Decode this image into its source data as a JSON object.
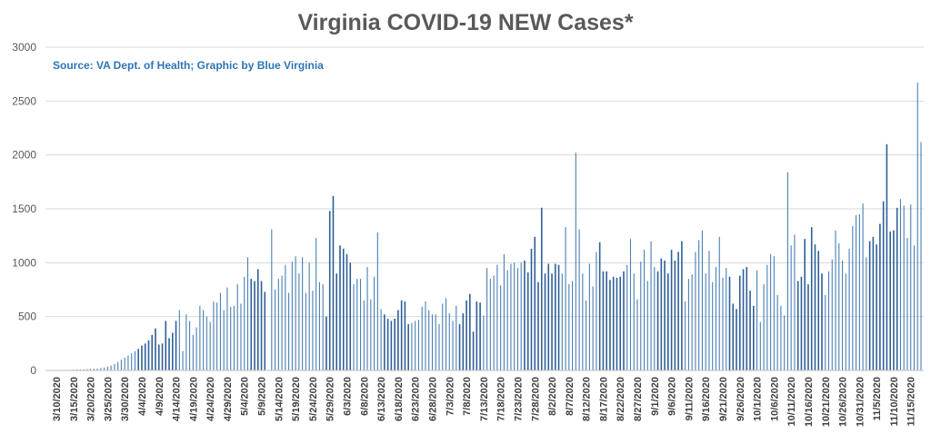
{
  "chart_data": {
    "type": "bar",
    "title": "Virginia COVID-19 NEW Cases*",
    "subtitle": "Source: VA Dept. of Health; Graphic by Blue Virginia",
    "xlabel": "",
    "ylabel": "",
    "ylim": [
      0,
      3000
    ],
    "yticks": [
      0,
      500,
      1000,
      1500,
      2000,
      2500,
      3000
    ],
    "grid": true,
    "legend": "none",
    "colors": {
      "bar": "#4a7fb5",
      "bar_dark": "#2f5f97",
      "title": "#595959",
      "subtitle": "#2e75b6",
      "grid": "#d9d9d9"
    },
    "first_date": "3/10/2020",
    "tick_labels": [
      "3/10/2020",
      "3/15/2020",
      "3/20/2020",
      "3/25/2020",
      "3/30/2020",
      "4/4/2020",
      "4/9/2020",
      "4/14/2020",
      "4/19/2020",
      "4/24/2020",
      "4/29/2020",
      "5/4/2020",
      "5/9/2020",
      "5/14/2020",
      "5/19/2020",
      "5/24/2020",
      "5/29/2020",
      "6/3/2020",
      "6/8/2020",
      "6/13/2020",
      "6/18/2020",
      "6/23/2020",
      "6/28/2020",
      "7/3/2020",
      "7/8/2020",
      "7/13/2020",
      "7/18/2020",
      "7/23/2020",
      "7/28/2020",
      "8/2/2020",
      "8/7/2020",
      "8/12/2020",
      "8/17/2020",
      "8/22/2020",
      "8/27/2020",
      "9/1/2020",
      "9/6/2020",
      "9/11/2020",
      "9/16/2020",
      "9/21/2020",
      "9/26/2020",
      "10/1/2020",
      "10/6/2020",
      "10/11/2020",
      "10/16/2020",
      "10/21/2020",
      "10/26/2020",
      "10/31/2020",
      "11/5/2020",
      "11/10/2020",
      "11/15/2020"
    ],
    "values": [
      2,
      3,
      4,
      5,
      6,
      7,
      8,
      9,
      10,
      12,
      14,
      16,
      18,
      22,
      28,
      35,
      45,
      60,
      80,
      100,
      120,
      140,
      160,
      180,
      200,
      230,
      250,
      280,
      330,
      390,
      240,
      250,
      460,
      300,
      350,
      460,
      560,
      180,
      520,
      460,
      330,
      400,
      600,
      560,
      500,
      450,
      640,
      630,
      720,
      560,
      770,
      590,
      600,
      800,
      620,
      870,
      1050,
      850,
      830,
      940,
      830,
      730,
      0,
      1310,
      750,
      850,
      880,
      980,
      720,
      1010,
      1060,
      900,
      1050,
      720,
      1000,
      740,
      1230,
      820,
      800,
      500,
      1480,
      1620,
      900,
      1160,
      1130,
      1080,
      1000,
      800,
      850,
      850,
      650,
      960,
      660,
      870,
      1280,
      570,
      520,
      480,
      460,
      480,
      560,
      650,
      640,
      430,
      440,
      460,
      470,
      590,
      640,
      560,
      520,
      520,
      430,
      620,
      670,
      530,
      460,
      600,
      430,
      530,
      650,
      710,
      360,
      640,
      630,
      510,
      950,
      850,
      880,
      980,
      790,
      1080,
      930,
      990,
      1000,
      950,
      1000,
      1020,
      910,
      1130,
      1240,
      820,
      1510,
      900,
      990,
      900,
      990,
      980,
      900,
      1330,
      800,
      830,
      2020,
      1310,
      900,
      650,
      990,
      780,
      1100,
      1190,
      920,
      920,
      840,
      870,
      860,
      870,
      920,
      980,
      1220,
      900,
      660,
      1010,
      1120,
      830,
      1200,
      960,
      920,
      1040,
      1020,
      900,
      1120,
      1020,
      1100,
      1200,
      640,
      850,
      890,
      1100,
      1210,
      1300,
      900,
      1110,
      820,
      960,
      1240,
      860,
      950,
      870,
      620,
      570,
      880,
      940,
      960,
      740,
      600,
      930,
      450,
      800,
      980,
      1080,
      1060,
      700,
      600,
      510,
      1840,
      1160,
      1260,
      830,
      870,
      1220,
      800,
      1330,
      1170,
      1110,
      900,
      700,
      920,
      1030,
      1300,
      1180,
      1020,
      900,
      1130,
      1340,
      1440,
      1450,
      1550,
      1050,
      1200,
      1240,
      1170,
      1360,
      1570,
      2100,
      1290,
      1300,
      1510,
      1590,
      1530,
      1230,
      1540,
      1160,
      2670,
      2120
    ]
  }
}
